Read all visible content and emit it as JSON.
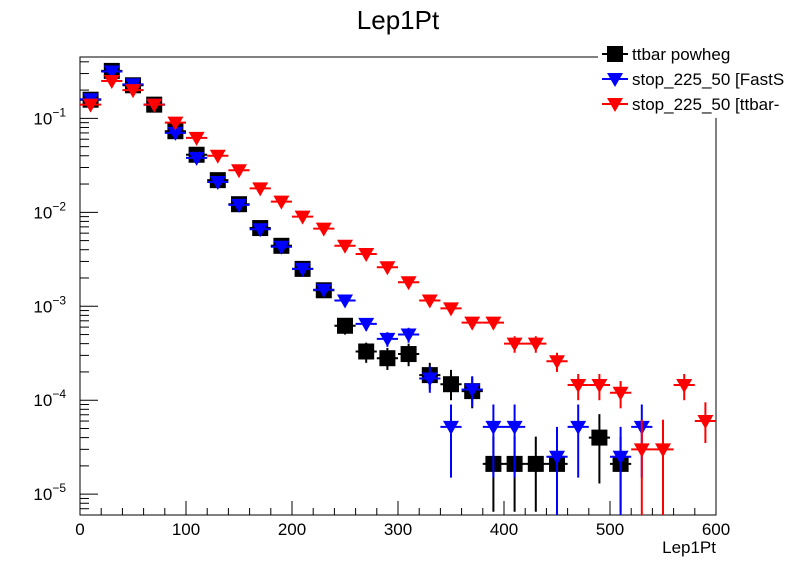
{
  "chart_data": {
    "type": "scatter",
    "title": "Lep1Pt",
    "xlabel": "Lep1Pt",
    "ylabel": "",
    "xlim": [
      0,
      600
    ],
    "ylim": [
      6e-06,
      0.45
    ],
    "yscale": "log",
    "grid": false,
    "legend_position": "top-right",
    "x_ticks": [
      0,
      100,
      200,
      300,
      400,
      500,
      600
    ],
    "y_ticks": [
      {
        "value": 1e-05,
        "mantissa": "10",
        "exponent": "−5"
      },
      {
        "value": 0.0001,
        "mantissa": "10",
        "exponent": "−4"
      },
      {
        "value": 0.001,
        "mantissa": "10",
        "exponent": "−3"
      },
      {
        "value": 0.01,
        "mantissa": "10",
        "exponent": "−2"
      },
      {
        "value": 0.1,
        "mantissa": "10",
        "exponent": "−1"
      }
    ],
    "bin_width": 20,
    "series": [
      {
        "name": "ttbar powheg",
        "color": "#000000",
        "marker": "square",
        "points": [
          {
            "x": 10,
            "y": 0.158,
            "lo": 0.152,
            "hi": 0.164
          },
          {
            "x": 30,
            "y": 0.32,
            "lo": 0.31,
            "hi": 0.33
          },
          {
            "x": 50,
            "y": 0.225,
            "lo": 0.218,
            "hi": 0.232
          },
          {
            "x": 70,
            "y": 0.14,
            "lo": 0.135,
            "hi": 0.145
          },
          {
            "x": 90,
            "y": 0.073,
            "lo": 0.07,
            "hi": 0.076
          },
          {
            "x": 110,
            "y": 0.041,
            "lo": 0.039,
            "hi": 0.043
          },
          {
            "x": 130,
            "y": 0.022,
            "lo": 0.021,
            "hi": 0.023
          },
          {
            "x": 150,
            "y": 0.0122,
            "lo": 0.0115,
            "hi": 0.0129
          },
          {
            "x": 170,
            "y": 0.0068,
            "lo": 0.0063,
            "hi": 0.0073
          },
          {
            "x": 190,
            "y": 0.0044,
            "lo": 0.004,
            "hi": 0.0048
          },
          {
            "x": 210,
            "y": 0.0025,
            "lo": 0.0022,
            "hi": 0.0028
          },
          {
            "x": 230,
            "y": 0.00148,
            "lo": 0.00128,
            "hi": 0.00168
          },
          {
            "x": 250,
            "y": 0.00062,
            "lo": 0.0005,
            "hi": 0.00074
          },
          {
            "x": 270,
            "y": 0.00033,
            "lo": 0.00025,
            "hi": 0.00041
          },
          {
            "x": 290,
            "y": 0.00028,
            "lo": 0.00021,
            "hi": 0.00036
          },
          {
            "x": 310,
            "y": 0.00031,
            "lo": 0.00023,
            "hi": 0.0004
          },
          {
            "x": 330,
            "y": 0.000185,
            "lo": 0.00013,
            "hi": 0.00025
          },
          {
            "x": 350,
            "y": 0.000148,
            "lo": 0.0001,
            "hi": 0.00021
          },
          {
            "x": 370,
            "y": 0.000125,
            "lo": 8.2e-05,
            "hi": 0.000175
          },
          {
            "x": 390,
            "y": 2.1e-05,
            "lo": 6.5e-06,
            "hi": 4.1e-05
          },
          {
            "x": 410,
            "y": 2.1e-05,
            "lo": 6.5e-06,
            "hi": 4.1e-05
          },
          {
            "x": 430,
            "y": 2.1e-05,
            "lo": 6.5e-06,
            "hi": 4.1e-05
          },
          {
            "x": 450,
            "y": 2.1e-05,
            "lo": 6.5e-06,
            "hi": 4.1e-05
          },
          {
            "x": 490,
            "y": 4e-05,
            "lo": 1.3e-05,
            "hi": 7.1e-05
          },
          {
            "x": 510,
            "y": 2.1e-05,
            "lo": 6.5e-06,
            "hi": 4.1e-05
          }
        ]
      },
      {
        "name": "stop_225_50 [FastS",
        "color": "#0000ff",
        "marker": "triangle-down",
        "points": [
          {
            "x": 10,
            "y": 0.16,
            "lo": 0.154,
            "hi": 0.166
          },
          {
            "x": 30,
            "y": 0.315,
            "lo": 0.305,
            "hi": 0.325
          },
          {
            "x": 50,
            "y": 0.23,
            "lo": 0.223,
            "hi": 0.237
          },
          {
            "x": 70,
            "y": 0.14,
            "lo": 0.135,
            "hi": 0.145
          },
          {
            "x": 90,
            "y": 0.07,
            "lo": 0.067,
            "hi": 0.073
          },
          {
            "x": 110,
            "y": 0.038,
            "lo": 0.036,
            "hi": 0.04
          },
          {
            "x": 130,
            "y": 0.021,
            "lo": 0.02,
            "hi": 0.022
          },
          {
            "x": 150,
            "y": 0.012,
            "lo": 0.0113,
            "hi": 0.0127
          },
          {
            "x": 170,
            "y": 0.0066,
            "lo": 0.0062,
            "hi": 0.007
          },
          {
            "x": 190,
            "y": 0.0043,
            "lo": 0.004,
            "hi": 0.0046
          },
          {
            "x": 210,
            "y": 0.0025,
            "lo": 0.0023,
            "hi": 0.0027
          },
          {
            "x": 230,
            "y": 0.0015,
            "lo": 0.00135,
            "hi": 0.00165
          },
          {
            "x": 250,
            "y": 0.00115,
            "lo": 0.001,
            "hi": 0.0013
          },
          {
            "x": 270,
            "y": 0.00065,
            "lo": 0.00055,
            "hi": 0.00075
          },
          {
            "x": 290,
            "y": 0.00045,
            "lo": 0.00037,
            "hi": 0.00053
          },
          {
            "x": 310,
            "y": 0.0005,
            "lo": 0.00041,
            "hi": 0.00059
          },
          {
            "x": 330,
            "y": 0.00017,
            "lo": 0.00012,
            "hi": 0.00023
          },
          {
            "x": 350,
            "y": 5.2e-05,
            "lo": 1.5e-05,
            "hi": 9e-05
          },
          {
            "x": 370,
            "y": 0.00013,
            "lo": 8.5e-05,
            "hi": 0.00018
          },
          {
            "x": 390,
            "y": 5.2e-05,
            "lo": 1.5e-05,
            "hi": 9e-05
          },
          {
            "x": 410,
            "y": 5.2e-05,
            "lo": 1.5e-05,
            "hi": 9e-05
          },
          {
            "x": 450,
            "y": 2.5e-05,
            "lo": 6e-06,
            "hi": 5.2e-05
          },
          {
            "x": 470,
            "y": 5.2e-05,
            "lo": 1.5e-05,
            "hi": 9e-05
          },
          {
            "x": 510,
            "y": 2.5e-05,
            "lo": 6e-06,
            "hi": 5.2e-05
          },
          {
            "x": 530,
            "y": 5.2e-05,
            "lo": 1.5e-05,
            "hi": 9e-05
          }
        ]
      },
      {
        "name": "stop_225_50 [ttbar-",
        "color": "#ff0000",
        "marker": "triangle-down",
        "points": [
          {
            "x": 10,
            "y": 0.14,
            "lo": 0.134,
            "hi": 0.146
          },
          {
            "x": 30,
            "y": 0.25,
            "lo": 0.241,
            "hi": 0.259
          },
          {
            "x": 50,
            "y": 0.2,
            "lo": 0.193,
            "hi": 0.207
          },
          {
            "x": 70,
            "y": 0.14,
            "lo": 0.135,
            "hi": 0.145
          },
          {
            "x": 90,
            "y": 0.09,
            "lo": 0.086,
            "hi": 0.094
          },
          {
            "x": 110,
            "y": 0.062,
            "lo": 0.059,
            "hi": 0.065
          },
          {
            "x": 130,
            "y": 0.04,
            "lo": 0.038,
            "hi": 0.042
          },
          {
            "x": 150,
            "y": 0.028,
            "lo": 0.0265,
            "hi": 0.0295
          },
          {
            "x": 170,
            "y": 0.018,
            "lo": 0.017,
            "hi": 0.019
          },
          {
            "x": 190,
            "y": 0.013,
            "lo": 0.0122,
            "hi": 0.0138
          },
          {
            "x": 210,
            "y": 0.009,
            "lo": 0.0084,
            "hi": 0.0096
          },
          {
            "x": 230,
            "y": 0.0067,
            "lo": 0.0062,
            "hi": 0.0072
          },
          {
            "x": 250,
            "y": 0.0044,
            "lo": 0.004,
            "hi": 0.0048
          },
          {
            "x": 270,
            "y": 0.0036,
            "lo": 0.0033,
            "hi": 0.0039
          },
          {
            "x": 290,
            "y": 0.0026,
            "lo": 0.0023,
            "hi": 0.0029
          },
          {
            "x": 310,
            "y": 0.0018,
            "lo": 0.0016,
            "hi": 0.002
          },
          {
            "x": 330,
            "y": 0.00115,
            "lo": 0.001,
            "hi": 0.0013
          },
          {
            "x": 350,
            "y": 0.00095,
            "lo": 0.00082,
            "hi": 0.00108
          },
          {
            "x": 370,
            "y": 0.00067,
            "lo": 0.00057,
            "hi": 0.00077
          },
          {
            "x": 390,
            "y": 0.00067,
            "lo": 0.00057,
            "hi": 0.00077
          },
          {
            "x": 410,
            "y": 0.0004,
            "lo": 0.00032,
            "hi": 0.00048
          },
          {
            "x": 430,
            "y": 0.0004,
            "lo": 0.00032,
            "hi": 0.00048
          },
          {
            "x": 450,
            "y": 0.00026,
            "lo": 0.0002,
            "hi": 0.00032
          },
          {
            "x": 470,
            "y": 0.000145,
            "lo": 0.0001,
            "hi": 0.00019
          },
          {
            "x": 490,
            "y": 0.000145,
            "lo": 0.0001,
            "hi": 0.00019
          },
          {
            "x": 510,
            "y": 0.00012,
            "lo": 8.2e-05,
            "hi": 0.00016
          },
          {
            "x": 530,
            "y": 3e-05,
            "lo": 5e-06,
            "hi": 6.2e-05
          },
          {
            "x": 550,
            "y": 3e-05,
            "lo": 5e-06,
            "hi": 6.2e-05
          },
          {
            "x": 570,
            "y": 0.000145,
            "lo": 0.0001,
            "hi": 0.00019
          },
          {
            "x": 590,
            "y": 6e-05,
            "lo": 3.5e-05,
            "hi": 9.5e-05
          }
        ]
      }
    ]
  }
}
